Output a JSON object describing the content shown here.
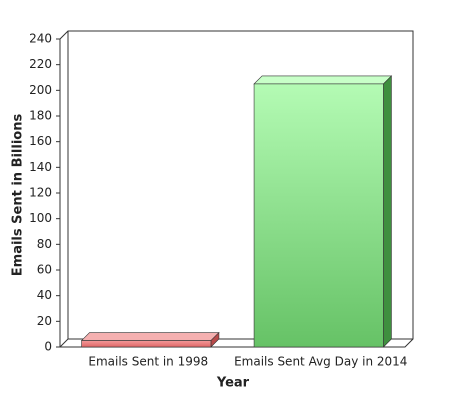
{
  "chart_data": {
    "type": "bar",
    "x_label": "Year",
    "y_label": "Emails Sent in Billions",
    "categories": [
      "Emails Sent in 1998",
      "Emails Sent Avg Day in 2014"
    ],
    "values": [
      5,
      205
    ],
    "colors": [
      "#e87474",
      "#7fd67f"
    ],
    "ylim": [
      0,
      240
    ],
    "yticks": [
      0,
      20,
      40,
      60,
      80,
      100,
      120,
      140,
      160,
      180,
      200,
      220,
      240
    ]
  }
}
